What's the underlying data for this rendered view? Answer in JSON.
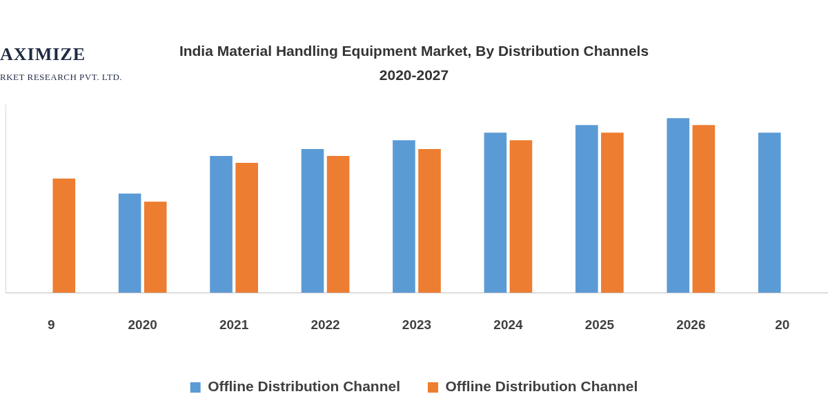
{
  "chart_data": {
    "type": "bar",
    "title": [
      "India Material Handling Equipment Market, By Distribution Channels",
      "2020-2027"
    ],
    "logo_text": [
      "AXIMIZE",
      "RKET RESEARCH PVT. LTD."
    ],
    "categories": [
      "9",
      "2020",
      "2021",
      "2022",
      "2023",
      "2024",
      "2025",
      "2026",
      "20"
    ],
    "series": [
      {
        "name": "Offline Distribution Channel",
        "color": "#5b9bd5",
        "values": [
          null,
          158,
          218,
          229,
          243,
          255,
          267,
          278,
          255
        ]
      },
      {
        "name": "Offline Distribution Channel",
        "color": "#ed7d31",
        "values": [
          182,
          145,
          207,
          218,
          229,
          243,
          255,
          267,
          null
        ]
      }
    ],
    "ylim": [
      0,
      300
    ],
    "grid": false,
    "legend": "bottom",
    "tick_labels": "x"
  }
}
